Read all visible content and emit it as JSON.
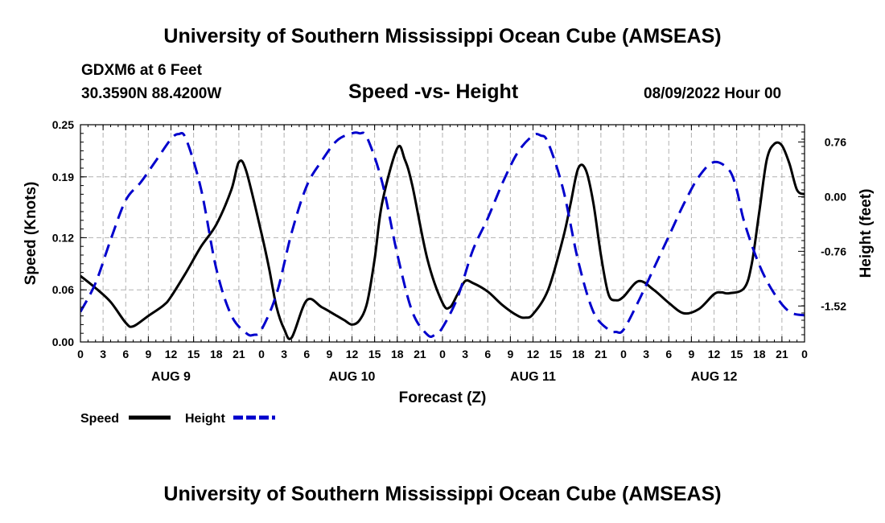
{
  "header": {
    "title": "University of Southern Mississippi Ocean Cube (AMSEAS)",
    "station": "GDXM6 at 6 Feet",
    "coordinates": "30.3590N  88.4200W",
    "date": "08/09/2022 Hour 00"
  },
  "footer": {
    "title": "University of Southern Mississippi Ocean Cube (AMSEAS)"
  },
  "colors": {
    "speed": "#000000",
    "height": "#0000cc",
    "grid": "#b0b0b0"
  },
  "chart_data": {
    "type": "line",
    "title": "Speed -vs- Height",
    "xlabel": "Forecast (Z)",
    "ylabel": "Speed (Knots)",
    "y2label": "Height (feet)",
    "xlim": [
      0,
      96
    ],
    "ylim": [
      0,
      0.25
    ],
    "y2lim": [
      -2.02,
      1.0
    ],
    "x_tick_labels": [
      "0",
      "3",
      "6",
      "9",
      "12",
      "15",
      "18",
      "21",
      "0",
      "3",
      "6",
      "9",
      "12",
      "15",
      "18",
      "21",
      "0",
      "3",
      "6",
      "9",
      "12",
      "15",
      "18",
      "21",
      "0",
      "3",
      "6",
      "9",
      "12",
      "15",
      "18",
      "21",
      "0"
    ],
    "y_ticks": [
      0.0,
      0.06,
      0.12,
      0.19,
      0.25
    ],
    "y_tick_labels": [
      "0.00",
      "0.06",
      "0.12",
      "0.19",
      "0.25"
    ],
    "y2_ticks": [
      0.76,
      0.0,
      -0.76,
      -1.52
    ],
    "y2_tick_labels": [
      "0.76",
      "0.00",
      "-0.76",
      "-1.52"
    ],
    "days": [
      {
        "label": "AUG 9",
        "x": 12
      },
      {
        "label": "AUG 10",
        "x": 36
      },
      {
        "label": "AUG 11",
        "x": 60
      },
      {
        "label": "AUG 12",
        "x": 84
      }
    ],
    "legend": [
      "Speed",
      "Height"
    ],
    "series": [
      {
        "name": "Speed",
        "axis": "left",
        "style": "solid",
        "x": [
          0,
          2,
          4,
          6,
          7,
          9,
          11,
          12,
          14,
          16,
          18,
          20,
          21,
          22,
          24,
          25,
          26,
          27,
          28,
          30,
          32,
          34,
          35,
          36,
          37,
          38,
          39,
          40,
          42,
          43,
          44,
          46,
          48,
          49,
          50,
          51,
          52,
          54,
          56,
          58,
          59,
          60,
          62,
          64,
          65,
          66,
          67,
          68,
          69,
          70,
          71,
          72,
          74,
          76,
          78,
          80,
          82,
          84,
          85,
          86,
          88,
          89,
          90,
          91,
          92,
          93,
          94,
          95,
          96
        ],
        "values": [
          0.076,
          0.062,
          0.046,
          0.022,
          0.018,
          0.03,
          0.042,
          0.052,
          0.08,
          0.11,
          0.135,
          0.175,
          0.207,
          0.196,
          0.125,
          0.085,
          0.04,
          0.015,
          0.005,
          0.048,
          0.04,
          0.03,
          0.025,
          0.02,
          0.025,
          0.045,
          0.095,
          0.16,
          0.223,
          0.21,
          0.18,
          0.095,
          0.045,
          0.04,
          0.055,
          0.07,
          0.068,
          0.058,
          0.042,
          0.03,
          0.028,
          0.032,
          0.06,
          0.12,
          0.16,
          0.2,
          0.198,
          0.16,
          0.1,
          0.055,
          0.048,
          0.052,
          0.07,
          0.06,
          0.045,
          0.033,
          0.038,
          0.055,
          0.057,
          0.056,
          0.062,
          0.09,
          0.15,
          0.21,
          0.228,
          0.226,
          0.205,
          0.175,
          0.17
        ]
      },
      {
        "name": "Height",
        "axis": "right",
        "style": "dashed",
        "x": [
          0,
          2,
          4,
          6,
          8,
          10,
          12,
          13,
          14,
          16,
          18,
          20,
          22,
          23,
          24,
          26,
          28,
          30,
          32,
          34,
          36,
          37,
          38,
          40,
          42,
          44,
          46,
          47,
          48,
          50,
          52,
          54,
          56,
          58,
          60,
          61,
          62,
          64,
          66,
          68,
          70,
          71,
          72,
          74,
          76,
          78,
          80,
          82,
          84,
          86,
          87,
          88,
          90,
          92,
          94,
          96
        ],
        "values": [
          -1.6,
          -1.2,
          -0.6,
          -0.05,
          0.2,
          0.5,
          0.8,
          0.87,
          0.8,
          0.1,
          -1.0,
          -1.65,
          -1.9,
          -1.92,
          -1.85,
          -1.35,
          -0.5,
          0.15,
          0.5,
          0.78,
          0.88,
          0.88,
          0.82,
          0.2,
          -0.8,
          -1.6,
          -1.92,
          -1.92,
          -1.82,
          -1.4,
          -0.75,
          -0.3,
          0.2,
          0.62,
          0.85,
          0.85,
          0.75,
          0.1,
          -0.9,
          -1.6,
          -1.85,
          -1.88,
          -1.85,
          -1.45,
          -1.0,
          -0.55,
          -0.1,
          0.28,
          0.48,
          0.37,
          0.1,
          -0.35,
          -0.95,
          -1.35,
          -1.6,
          -1.65
        ]
      }
    ]
  }
}
